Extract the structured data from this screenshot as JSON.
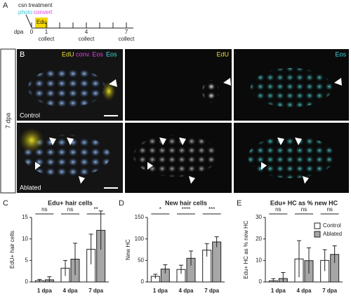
{
  "panel_a": {
    "letter": "A",
    "line1": "csn treatment",
    "photo": "photo",
    "convert": "convert",
    "edu": "Edu",
    "dpa": "dpa",
    "days": [
      "0",
      "1",
      "4",
      "7"
    ],
    "collect": [
      "collect",
      "collect",
      "collect"
    ]
  },
  "panel_b": {
    "letter": "B",
    "side_label": "7 dpa",
    "merge_labels": [
      "EdU",
      "conv. Eos",
      "Eos"
    ],
    "edu_label": "EdU",
    "eos_label": "Eos",
    "rows": [
      "Control",
      "Ablated"
    ]
  },
  "chart_data": [
    {
      "type": "bar",
      "letter": "C",
      "title": "Edu+ hair cells",
      "ylabel": "EdU+ hair cells",
      "categories": [
        "1 dpa",
        "4 dpa",
        "7 dpa"
      ],
      "series": [
        {
          "name": "Control",
          "color": "#ffffff",
          "values": [
            0.3,
            3.2,
            7.6
          ],
          "errors": [
            0.3,
            1.8,
            3.5
          ]
        },
        {
          "name": "Ablated",
          "color": "#a6a6a6",
          "values": [
            0.5,
            5.3,
            12.0
          ],
          "errors": [
            0.7,
            3.7,
            4.5
          ]
        }
      ],
      "significance": [
        "ns",
        "ns",
        "**"
      ],
      "ylim": [
        0,
        15
      ],
      "yticks": [
        0,
        5,
        10,
        15
      ],
      "legend": false
    },
    {
      "type": "bar",
      "letter": "D",
      "title": "New hair cells",
      "ylabel": "New HC",
      "categories": [
        "1 dpa",
        "4 dpa",
        "7 dpa"
      ],
      "series": [
        {
          "name": "Control",
          "color": "#ffffff",
          "values": [
            13,
            29,
            74
          ],
          "errors": [
            5,
            10,
            15
          ]
        },
        {
          "name": "Ablated",
          "color": "#a6a6a6",
          "values": [
            30,
            55,
            93
          ],
          "errors": [
            10,
            17,
            12
          ]
        }
      ],
      "significance": [
        "*",
        "****",
        "***"
      ],
      "ylim": [
        0,
        150
      ],
      "yticks": [
        0,
        50,
        100,
        150
      ],
      "legend": false
    },
    {
      "type": "bar",
      "letter": "E",
      "title": "Edu+ HC as % new HC",
      "ylabel": "Edu+ HC as % new HC",
      "categories": [
        "1 dpa",
        "4 dpa",
        "7 dpa"
      ],
      "series": [
        {
          "name": "Control",
          "color": "#ffffff",
          "values": [
            0.5,
            10.7,
            10.0
          ],
          "errors": [
            1.0,
            8.5,
            5.0
          ]
        },
        {
          "name": "Ablated",
          "color": "#a6a6a6",
          "values": [
            1.6,
            9.9,
            12.8
          ],
          "errors": [
            2.8,
            6.0,
            4.0
          ]
        }
      ],
      "significance": [
        "ns",
        "ns",
        "ns"
      ],
      "ylim": [
        0,
        30
      ],
      "yticks": [
        0,
        10,
        20,
        30
      ],
      "legend": "upper right"
    }
  ]
}
